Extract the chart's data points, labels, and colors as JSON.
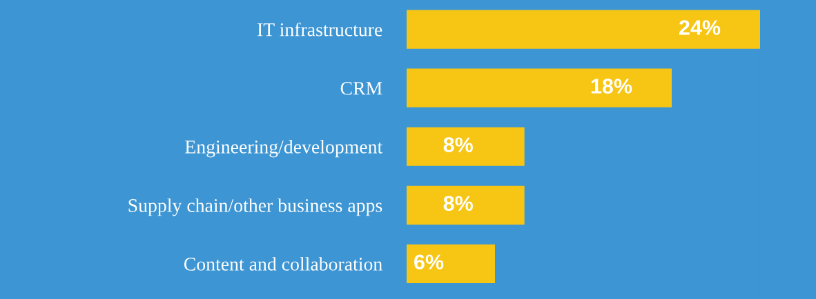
{
  "chart_data": {
    "type": "bar",
    "orientation": "horizontal",
    "categories": [
      "IT infrastructure",
      "CRM",
      "Engineering/development",
      "Supply chain/other business apps",
      "Content and collaboration"
    ],
    "values": [
      24,
      18,
      8,
      8,
      6
    ],
    "color": "#f7c614",
    "value_labels": [
      "24%",
      "18%",
      "8%",
      "8%",
      "6%"
    ],
    "tick_labels": "y",
    "grid": false,
    "legend": false
  }
}
